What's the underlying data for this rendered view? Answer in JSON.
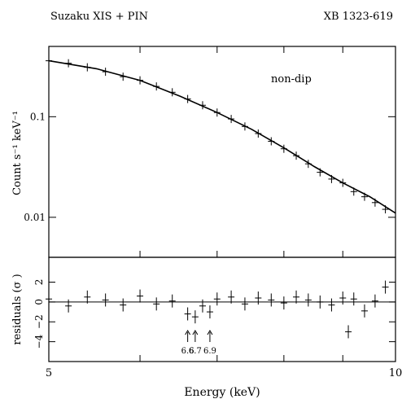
{
  "header": {
    "left_title": "Suzaku XIS + PIN",
    "right_title": "XB 1323-619"
  },
  "chart_data": [
    {
      "type": "scatter",
      "panel": "spectrum",
      "annotation": "non-dip",
      "xscale": "log",
      "yscale": "log",
      "xlim": [
        5,
        10
      ],
      "ylim": [
        0.004,
        0.5
      ],
      "yticks": [
        0.01,
        0.1
      ],
      "ytick_labels": [
        "0.01",
        "0.1"
      ],
      "ylabel": "Count s⁻¹ keV⁻¹",
      "series": [
        {
          "style": "data-points-with-errorbars",
          "x": [
            5.0,
            5.2,
            5.4,
            5.6,
            5.8,
            6.0,
            6.2,
            6.4,
            6.6,
            6.8,
            7.0,
            7.2,
            7.4,
            7.6,
            7.8,
            8.0,
            8.2,
            8.4,
            8.6,
            8.8,
            9.0,
            9.2,
            9.4,
            9.6,
            9.8
          ],
          "y": [
            0.36,
            0.34,
            0.31,
            0.28,
            0.25,
            0.23,
            0.2,
            0.175,
            0.15,
            0.13,
            0.11,
            0.095,
            0.08,
            0.068,
            0.057,
            0.048,
            0.041,
            0.034,
            0.028,
            0.024,
            0.022,
            0.018,
            0.016,
            0.014,
            0.012
          ]
        },
        {
          "style": "model-line",
          "x": [
            5.0,
            5.5,
            6.0,
            6.5,
            7.0,
            7.5,
            8.0,
            8.5,
            9.0,
            9.5,
            10.0
          ],
          "y": [
            0.36,
            0.3,
            0.23,
            0.16,
            0.11,
            0.075,
            0.049,
            0.032,
            0.022,
            0.016,
            0.011
          ]
        }
      ]
    },
    {
      "type": "scatter",
      "panel": "residuals",
      "xscale": "log",
      "xlim": [
        5,
        10
      ],
      "ylim": [
        -6,
        4.5
      ],
      "yticks": [
        -4,
        -2,
        0,
        2
      ],
      "ytick_labels": [
        "−4",
        "−2",
        "0",
        "2"
      ],
      "ylabel": "residuals (σ )",
      "xticks": [
        5,
        10
      ],
      "xtick_labels": [
        "5",
        "10"
      ],
      "xlabel": "Energy (keV)",
      "reference_line": 0,
      "line_markers": [
        {
          "x": 6.6,
          "label": "6.6"
        },
        {
          "x": 6.7,
          "label": "6.7"
        },
        {
          "x": 6.9,
          "label": "6.9"
        }
      ],
      "series": [
        {
          "style": "data-points-with-errorbars",
          "x": [
            5.0,
            5.2,
            5.4,
            5.6,
            5.8,
            6.0,
            6.2,
            6.4,
            6.6,
            6.7,
            6.8,
            6.9,
            7.0,
            7.2,
            7.4,
            7.6,
            7.8,
            8.0,
            8.2,
            8.4,
            8.6,
            8.8,
            9.0,
            9.1,
            9.2,
            9.4,
            9.6,
            9.8
          ],
          "y": [
            0.3,
            -0.4,
            0.5,
            0.2,
            -0.3,
            0.6,
            -0.2,
            0.1,
            -1.2,
            -1.5,
            -0.4,
            -1.0,
            0.3,
            0.5,
            -0.2,
            0.4,
            0.2,
            -0.1,
            0.5,
            0.2,
            0.0,
            -0.3,
            0.4,
            -3.0,
            0.3,
            -0.9,
            0.1,
            1.5
          ]
        }
      ]
    }
  ]
}
